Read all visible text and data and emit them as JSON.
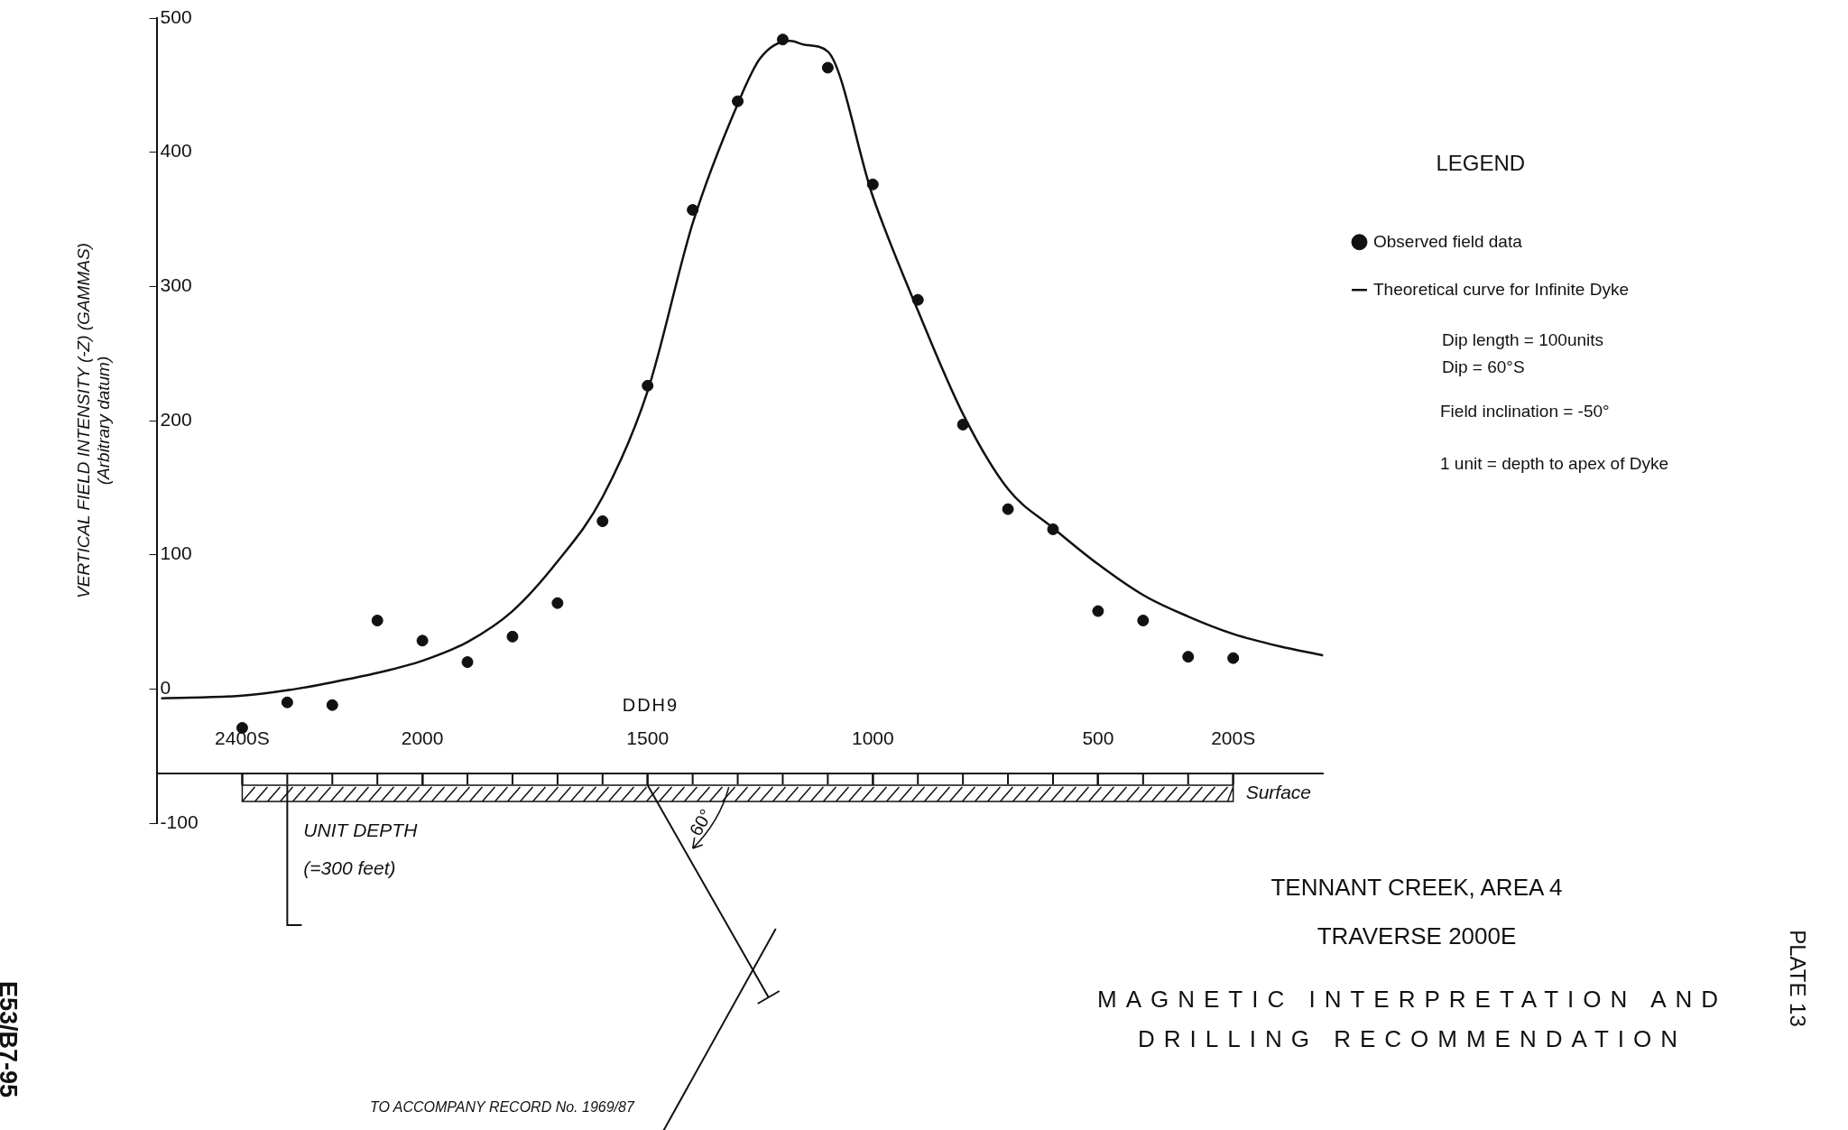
{
  "chart_data": {
    "type": "scatter",
    "title": "TENNANT CREEK, AREA 4",
    "subtitle": "TRAVERSE 2000E",
    "ylabel": "VERTICAL FIELD INTENSITY (-Z) (GAMMAS)\n(Arbitrary datum)",
    "legend_title": "LEGEND",
    "legend": "right",
    "grid": false,
    "xlim": [
      2590,
      0
    ],
    "xticks": [
      {
        "value": 2400,
        "label": "2400S"
      },
      2000,
      1500,
      1000,
      500,
      {
        "value": 200,
        "label": "200S"
      }
    ],
    "ylim": [
      -100,
      500
    ],
    "yticks": [
      -100,
      0,
      100,
      200,
      300,
      400,
      500
    ],
    "series": [
      {
        "name": "Observed field data",
        "type": "scatter",
        "marker": "circle",
        "color": "#111111",
        "x": [
          2400,
          2300,
          2200,
          2100,
          2000,
          1900,
          1800,
          1700,
          1600,
          1500,
          1400,
          1300,
          1200,
          1100,
          1000,
          900,
          800,
          700,
          600,
          500,
          400,
          300,
          200
        ],
        "values": [
          -29,
          -10,
          -12,
          51,
          36,
          20,
          39,
          64,
          125,
          226,
          357,
          438,
          484,
          463,
          376,
          290,
          197,
          134,
          119,
          58,
          51,
          24,
          23
        ]
      },
      {
        "name": "Theoretical curve for Infinite Dyke",
        "type": "line",
        "marker": "none",
        "line_style": "solid",
        "color": "#111111",
        "x": [
          2580,
          2400,
          2300,
          2200,
          2100,
          2000,
          1900,
          1800,
          1700,
          1600,
          1500,
          1400,
          1300,
          1250,
          1184,
          1150,
          1100,
          1000,
          900,
          800,
          700,
          600,
          500,
          400,
          300,
          200,
          100,
          0
        ],
        "values": [
          -7,
          -5,
          -1,
          5,
          12,
          21,
          35,
          58,
          95,
          143,
          222,
          347,
          436,
          470,
          483,
          480,
          475,
          367,
          282,
          205,
          149,
          120,
          93,
          70,
          54,
          41,
          32,
          25
        ]
      }
    ],
    "annotations": [
      "DDH9",
      "Surface",
      "UNIT DEPTH",
      "(=300 feet)",
      "60°",
      "Dip length = 100units",
      "Dip = 60°S",
      "Field inclination = -50°",
      "1 unit = depth to apex of Dyke",
      "MAGNETIC INTERPRETATION AND DRILLING RECOMMENDATION",
      "TO ACCOMPANY RECORD No. 1969/87",
      "E53/B7-95",
      "PLATE 13"
    ]
  }
}
